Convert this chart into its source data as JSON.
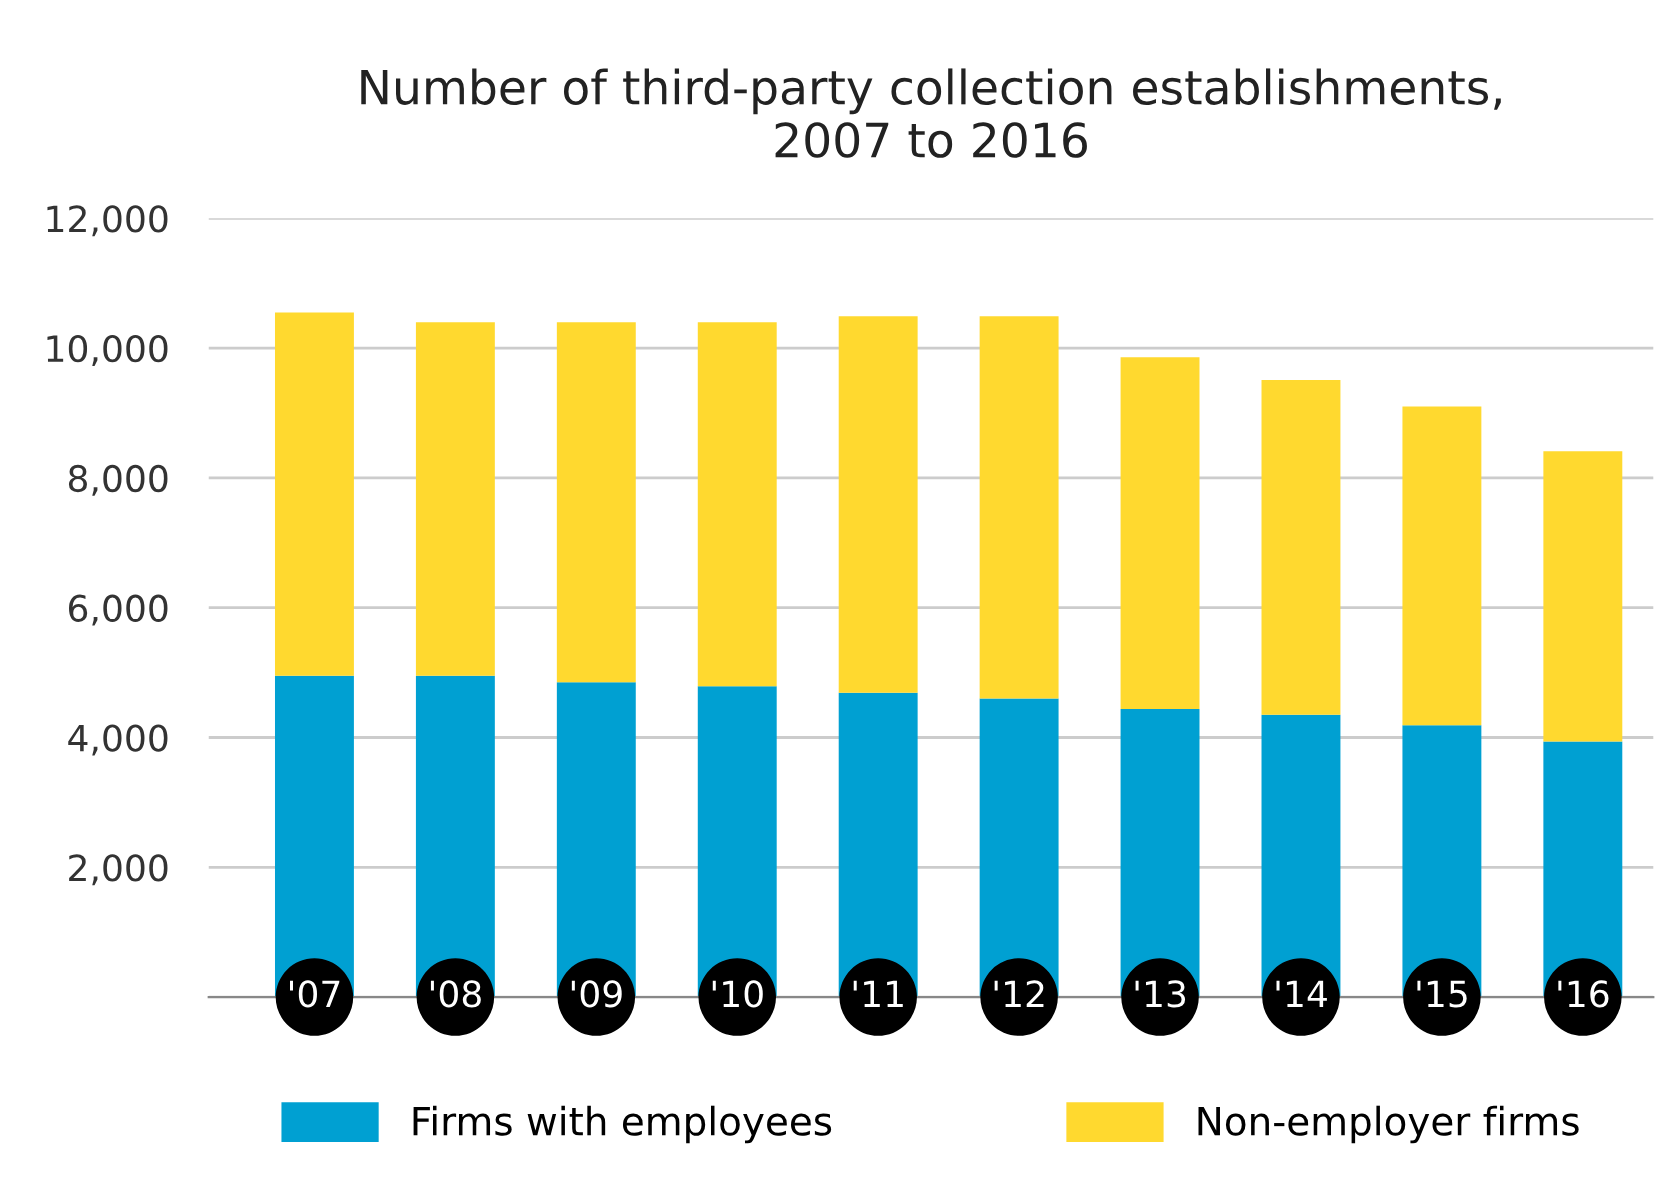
{
  "chart_data": {
    "type": "bar",
    "title": "Number of third-party collection establishments,\n2007 to 2016",
    "categories": [
      "'07",
      "'08",
      "'09",
      "'10",
      "'11",
      "'12",
      "'13",
      "'14",
      "'15",
      "'16"
    ],
    "stacked": true,
    "series": [
      {
        "name": "Firms with employees",
        "color": "#00a0d2",
        "values": [
          4950,
          4950,
          4850,
          4790,
          4690,
          4600,
          4440,
          4350,
          4190,
          3940
        ]
      },
      {
        "name": "Non-employer firms",
        "color": "#ffd92f",
        "values": [
          5600,
          5450,
          5550,
          5610,
          5800,
          5890,
          5420,
          5160,
          4910,
          4470
        ]
      }
    ],
    "ylim": [
      0,
      12000
    ],
    "yticks": [
      {
        "value": 0,
        "label": null
      },
      {
        "value": 2000,
        "label": "2,000"
      },
      {
        "value": 4000,
        "label": "4,000"
      },
      {
        "value": 6000,
        "label": "6,000"
      },
      {
        "value": 8000,
        "label": "8,000"
      },
      {
        "value": 10000,
        "label": "10,000"
      },
      {
        "value": 12000,
        "label": "12,000"
      }
    ],
    "grid": "y",
    "legend": "bottom"
  }
}
